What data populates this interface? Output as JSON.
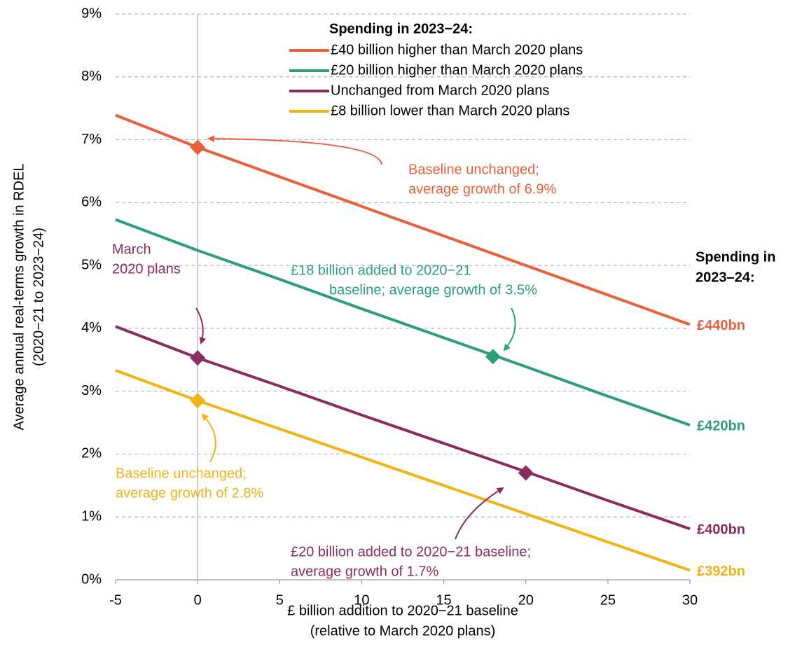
{
  "chart_data": {
    "type": "line",
    "x": [
      -5,
      0,
      5,
      10,
      15,
      20,
      25,
      30
    ],
    "xlim": [
      -5,
      30
    ],
    "xticks": [
      -5,
      0,
      5,
      10,
      15,
      20,
      25,
      30
    ],
    "ylim": [
      0,
      9
    ],
    "yticks": [
      {
        "value": 0,
        "label": "0%"
      },
      {
        "value": 1,
        "label": "1%"
      },
      {
        "value": 2,
        "label": "2%"
      },
      {
        "value": 3,
        "label": "3%"
      },
      {
        "value": 4,
        "label": "4%"
      },
      {
        "value": 5,
        "label": "5%"
      },
      {
        "value": 6,
        "label": "6%"
      },
      {
        "value": 7,
        "label": "7%"
      },
      {
        "value": 8,
        "label": "8%"
      },
      {
        "value": 9,
        "label": "9%"
      }
    ],
    "grid": true,
    "reference_x": 0,
    "x_label": [
      "£ billion addition to 2020−21 baseline",
      "(relative to March 2020 plans)"
    ],
    "y_label": [
      "Average annual real-terms growth in RDEL",
      "(2020−21 to 2023−24)"
    ],
    "legend_title": "Spending in 2023−24:",
    "end_label_title": [
      "Spending in",
      "2023–24:"
    ],
    "series": [
      {
        "name": "£40 billion higher than March 2020 plans",
        "color": "#e8613c",
        "values": [
          7.39,
          6.88,
          6.41,
          5.94,
          5.47,
          5.0,
          4.53,
          4.06
        ],
        "end_label": "£440bn",
        "markers": [
          {
            "x": 0,
            "y": 6.88
          }
        ]
      },
      {
        "name": "£20 billion higher than March 2020 plans",
        "color": "#2e9e78",
        "values": [
          5.73,
          5.24,
          4.78,
          4.31,
          3.85,
          3.39,
          2.92,
          2.46
        ],
        "end_label": "£420bn",
        "markers": [
          {
            "x": 18,
            "y": 3.55
          }
        ]
      },
      {
        "name": "Unchanged from March 2020 plans",
        "color": "#8b2c5e",
        "values": [
          4.03,
          3.53,
          3.08,
          2.62,
          2.17,
          1.72,
          1.26,
          0.81
        ],
        "end_label": "£400bn",
        "markers": [
          {
            "x": 0,
            "y": 3.53
          },
          {
            "x": 20,
            "y": 1.7
          }
        ]
      },
      {
        "name": "£8 billion lower than March 2020 plans",
        "color": "#f0b31a",
        "values": [
          3.33,
          2.85,
          2.4,
          1.95,
          1.5,
          1.05,
          0.6,
          0.15
        ],
        "end_label": "£392bn",
        "markers": [
          {
            "x": 0,
            "y": 2.85
          }
        ]
      }
    ],
    "annotations": [
      {
        "lines": [
          "Baseline unchanged;",
          "average growth of 6.9%"
        ],
        "color": "#e8613c"
      },
      {
        "lines": [
          "£18 billion added to 2020−21",
          "baseline; average growth of 3.5%"
        ],
        "color": "#2e9e78"
      },
      {
        "lines": [
          "March",
          "2020 plans"
        ],
        "color": "#8b2c5e"
      },
      {
        "lines": [
          "Baseline unchanged;",
          "average growth of 2.8%"
        ],
        "color": "#f0b31a"
      },
      {
        "lines": [
          "£20 billion added to 2020−21 baseline;",
          "average growth of 1.7%"
        ],
        "color": "#8b2c5e"
      }
    ]
  }
}
